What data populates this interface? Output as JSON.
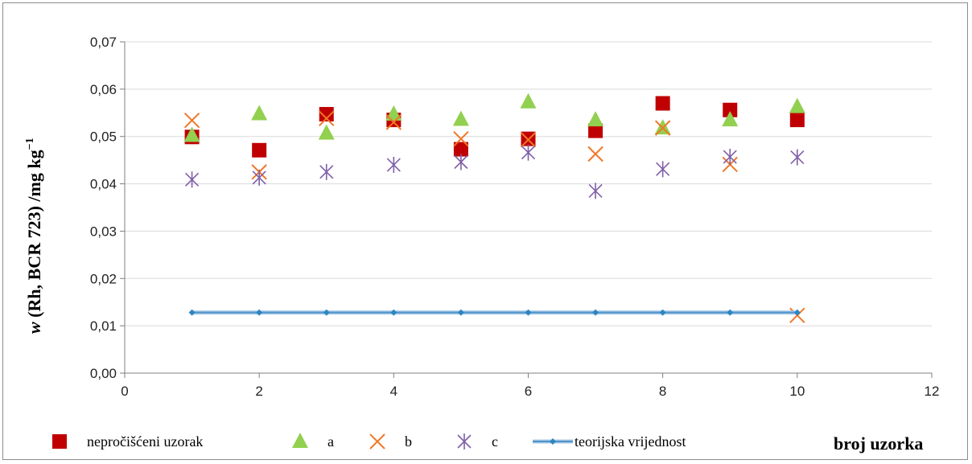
{
  "chart_data": {
    "type": "scatter",
    "title": "",
    "xlabel": "broj uzorka",
    "ylabel_italic": "w",
    "ylabel_main": " (Rh, BCR 723) /mg kg",
    "ylabel_sup": "−1",
    "xlim": [
      0,
      12
    ],
    "ylim": [
      0,
      0.07
    ],
    "x_ticks": [
      "0",
      "2",
      "4",
      "6",
      "8",
      "10",
      "12"
    ],
    "y_ticks": [
      "0,00",
      "0,01",
      "0,02",
      "0,03",
      "0,04",
      "0,05",
      "0,06",
      "0,07"
    ],
    "grid": "horizontal",
    "legend_position": "bottom",
    "series": [
      {
        "name": "nepročišćeni uzorak",
        "marker": "square",
        "color": "#c00000",
        "x": [
          1,
          2,
          3,
          4,
          5,
          6,
          7,
          8,
          9,
          10
        ],
        "y": [
          0.0499,
          0.0471,
          0.0547,
          0.0535,
          0.0473,
          0.0495,
          0.0512,
          0.057,
          0.0556,
          0.0535
        ]
      },
      {
        "name": "a",
        "marker": "triangle",
        "color": "#92d050",
        "x": [
          1,
          2,
          3,
          4,
          5,
          6,
          7,
          8,
          9,
          10
        ],
        "y": [
          0.0502,
          0.0548,
          0.0507,
          0.0547,
          0.0536,
          0.0573,
          0.0535,
          0.0518,
          0.0535,
          0.0563
        ]
      },
      {
        "name": "b",
        "marker": "x",
        "color": "#f07828",
        "x": [
          1,
          2,
          3,
          4,
          5,
          6,
          7,
          8,
          9,
          10
        ],
        "y": [
          0.0534,
          0.0425,
          0.0538,
          0.053,
          0.0495,
          0.0493,
          0.0463,
          0.0518,
          0.0441,
          0.0122
        ]
      },
      {
        "name": "c",
        "marker": "star",
        "color": "#7f5fa8",
        "x": [
          1,
          2,
          3,
          4,
          5,
          6,
          7,
          8,
          9,
          10
        ],
        "y": [
          0.0409,
          0.0413,
          0.0425,
          0.044,
          0.0446,
          0.0466,
          0.0385,
          0.0431,
          0.0457,
          0.0456
        ]
      },
      {
        "name": "teorijska vrijednost",
        "marker": "line-diamond",
        "color": "#4f94cd",
        "x": [
          1,
          2,
          3,
          4,
          5,
          6,
          7,
          8,
          9,
          10
        ],
        "y": [
          0.0128,
          0.0128,
          0.0128,
          0.0128,
          0.0128,
          0.0128,
          0.0128,
          0.0128,
          0.0128,
          0.0128
        ]
      }
    ]
  }
}
